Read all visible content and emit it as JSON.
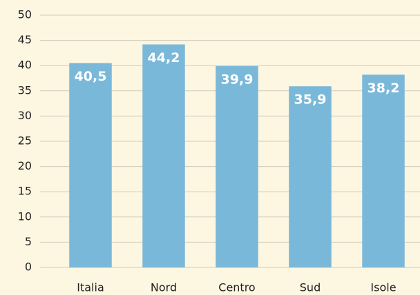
{
  "chart_data": {
    "type": "bar",
    "categories": [
      "Italia",
      "Nord",
      "Centro",
      "Sud",
      "Isole"
    ],
    "values": [
      40.5,
      44.2,
      39.9,
      35.9,
      38.2
    ],
    "value_labels": [
      "40,5",
      "44,2",
      "39,9",
      "35,9",
      "38,2"
    ],
    "color": "#7ab8d9",
    "ylim": [
      0,
      50
    ],
    "yticks": [
      0,
      5,
      10,
      15,
      20,
      25,
      30,
      35,
      40,
      45,
      50
    ],
    "grid": true
  }
}
